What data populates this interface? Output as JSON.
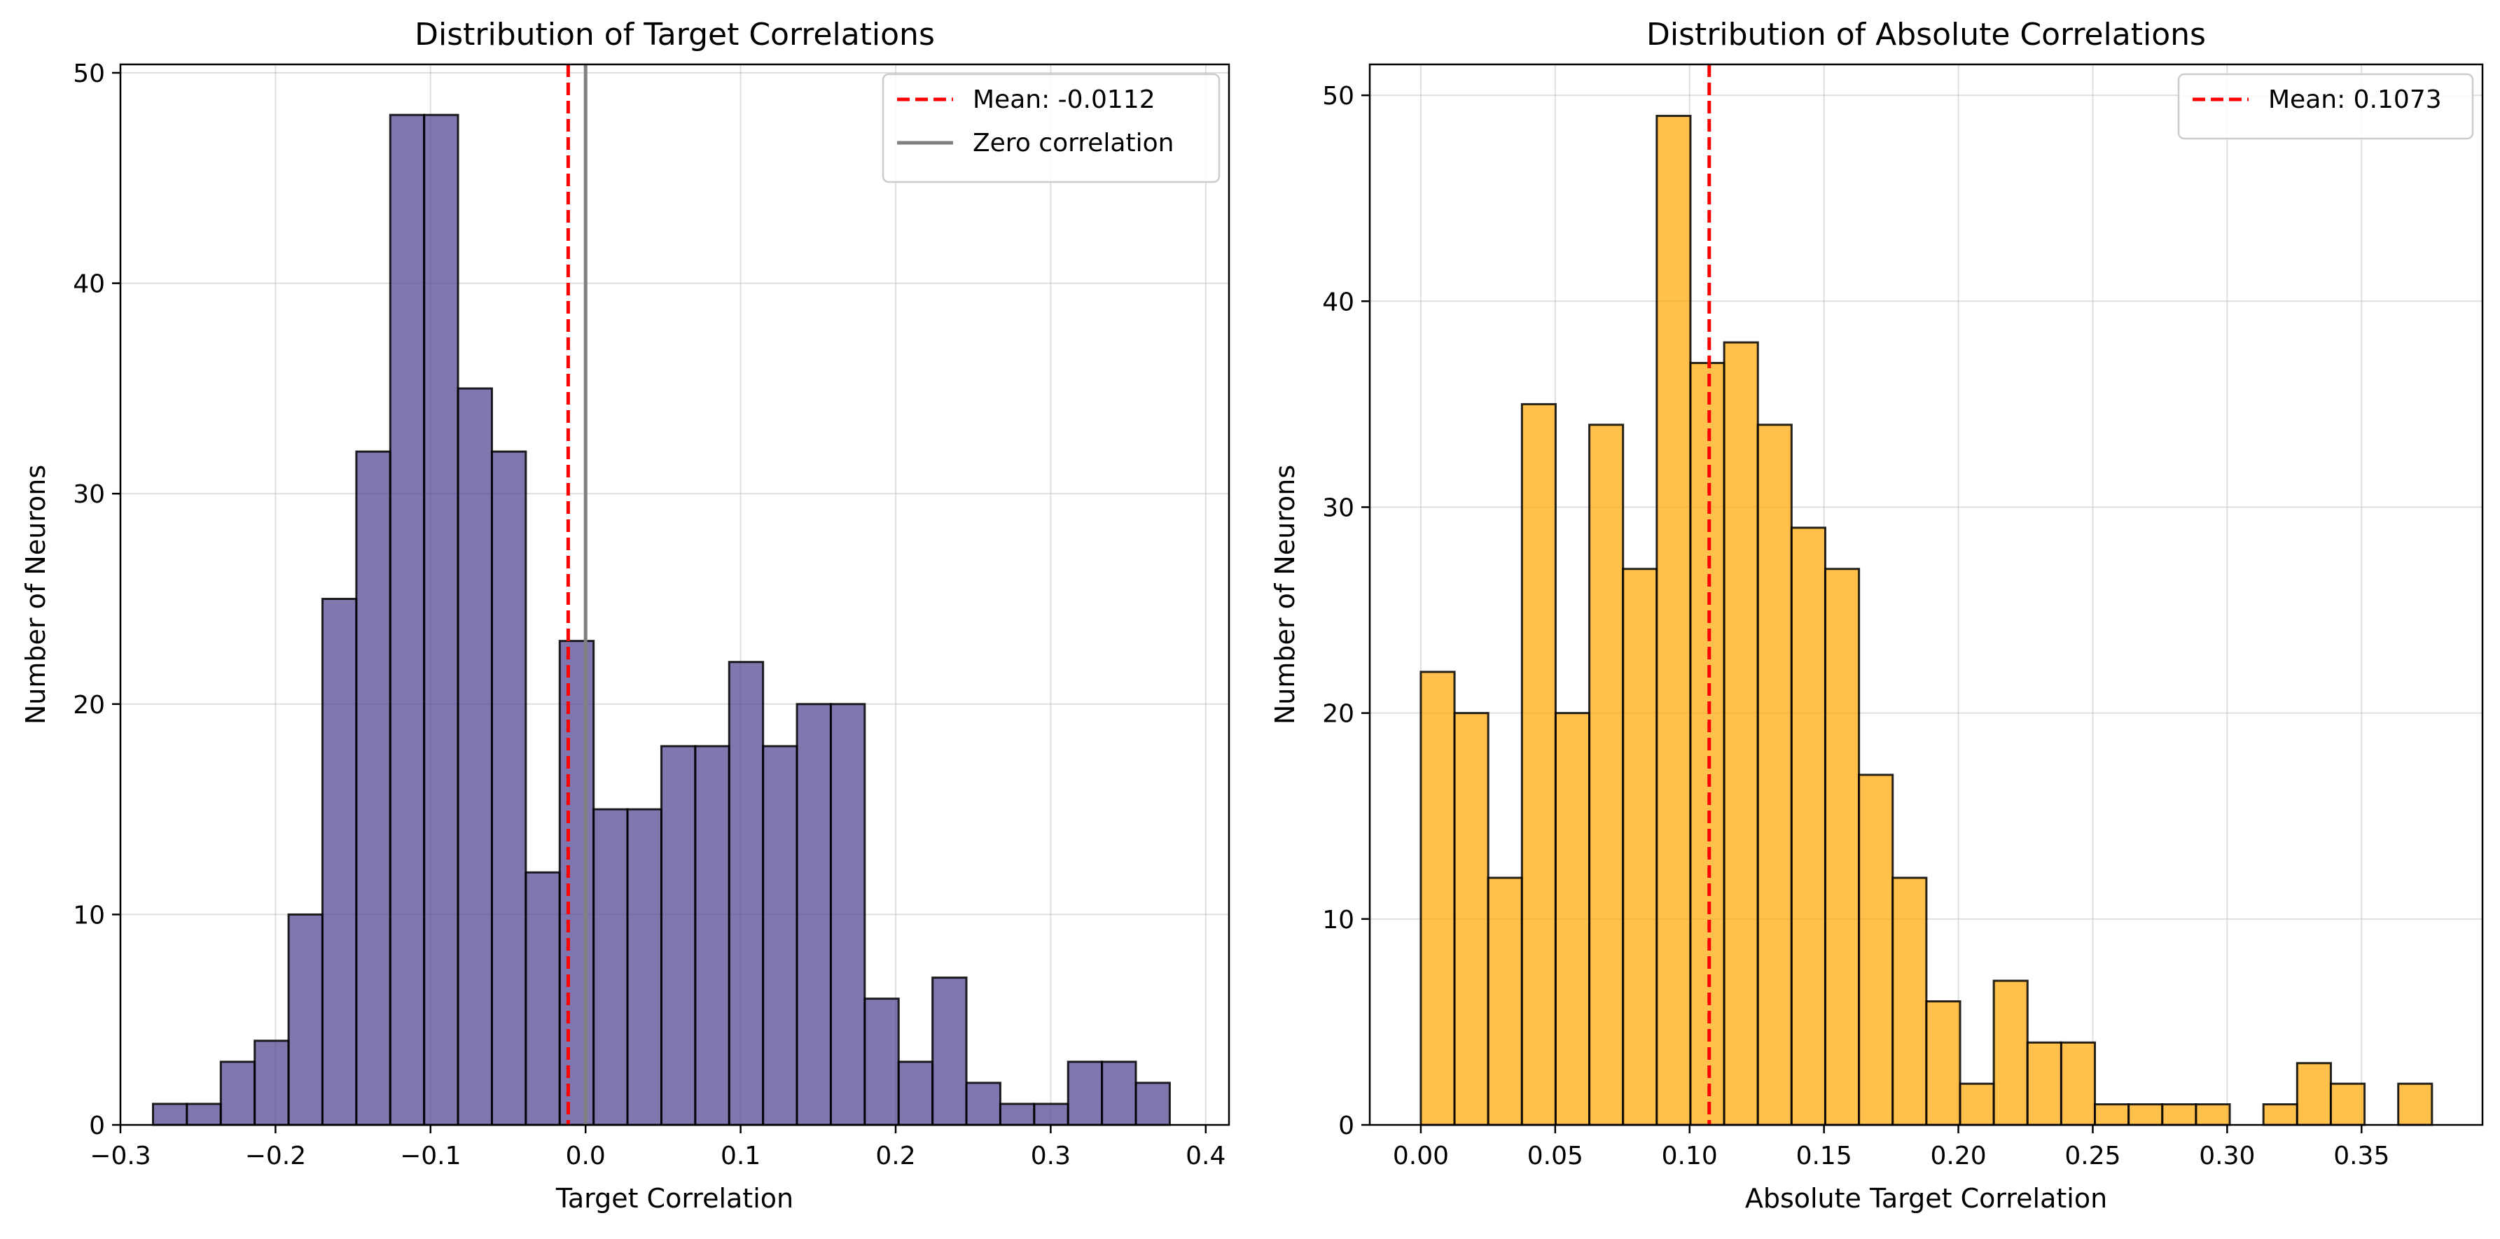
{
  "chart_data": [
    {
      "type": "bar",
      "title": "Distribution of Target Correlations",
      "xlabel": "Target Correlation",
      "ylabel": "Number of Neurons",
      "bin_start": -0.279,
      "bin_width": 0.02186,
      "counts": [
        1,
        1,
        3,
        4,
        10,
        25,
        32,
        48,
        48,
        35,
        32,
        12,
        23,
        15,
        15,
        18,
        18,
        22,
        18,
        20,
        20,
        6,
        3,
        7,
        2,
        1,
        1,
        3,
        3,
        2
      ],
      "xlim": [
        -0.3,
        0.415
      ],
      "ylim": [
        0,
        50.4
      ],
      "xticks": [
        -0.3,
        -0.2,
        -0.1,
        0.0,
        0.1,
        0.2,
        0.3,
        0.4
      ],
      "xtick_labels": [
        "−0.3",
        "−0.2",
        "−0.1",
        "0.0",
        "0.1",
        "0.2",
        "0.3",
        "0.4"
      ],
      "yticks": [
        0,
        10,
        20,
        30,
        40,
        50
      ],
      "ytick_labels": [
        "0",
        "10",
        "20",
        "30",
        "40",
        "50"
      ],
      "bar_color": "#483d8b",
      "bar_opacity": 0.7,
      "edge_color": "#000000",
      "grid": true,
      "lines": [
        {
          "x": -0.0112,
          "color": "#ff0000",
          "style": "dashed",
          "label": "Mean: -0.0112"
        },
        {
          "x": 0.0,
          "color": "#808080",
          "style": "solid",
          "label": "Zero correlation"
        }
      ],
      "legend": {
        "position": "top-right"
      }
    },
    {
      "type": "bar",
      "title": "Distribution of Absolute Correlations",
      "xlabel": "Absolute Target Correlation",
      "ylabel": "Number of Neurons",
      "bin_start": 0.0,
      "bin_width": 0.01254,
      "counts": [
        22,
        20,
        12,
        35,
        20,
        34,
        27,
        49,
        37,
        38,
        34,
        29,
        27,
        17,
        12,
        6,
        2,
        7,
        4,
        4,
        1,
        1,
        1,
        1,
        0,
        1,
        3,
        2,
        0,
        2
      ],
      "xlim": [
        -0.019,
        0.395
      ],
      "ylim": [
        0,
        51.5
      ],
      "xticks": [
        0.0,
        0.05,
        0.1,
        0.15,
        0.2,
        0.25,
        0.3,
        0.35
      ],
      "xtick_labels": [
        "0.00",
        "0.05",
        "0.10",
        "0.15",
        "0.20",
        "0.25",
        "0.30",
        "0.35"
      ],
      "yticks": [
        0,
        10,
        20,
        30,
        40,
        50
      ],
      "ytick_labels": [
        "0",
        "10",
        "20",
        "30",
        "40",
        "50"
      ],
      "bar_color": "#ffa500",
      "bar_opacity": 0.7,
      "edge_color": "#000000",
      "grid": true,
      "lines": [
        {
          "x": 0.1073,
          "color": "#ff0000",
          "style": "dashed",
          "label": "Mean: 0.1073"
        }
      ],
      "legend": {
        "position": "top-right"
      }
    }
  ]
}
